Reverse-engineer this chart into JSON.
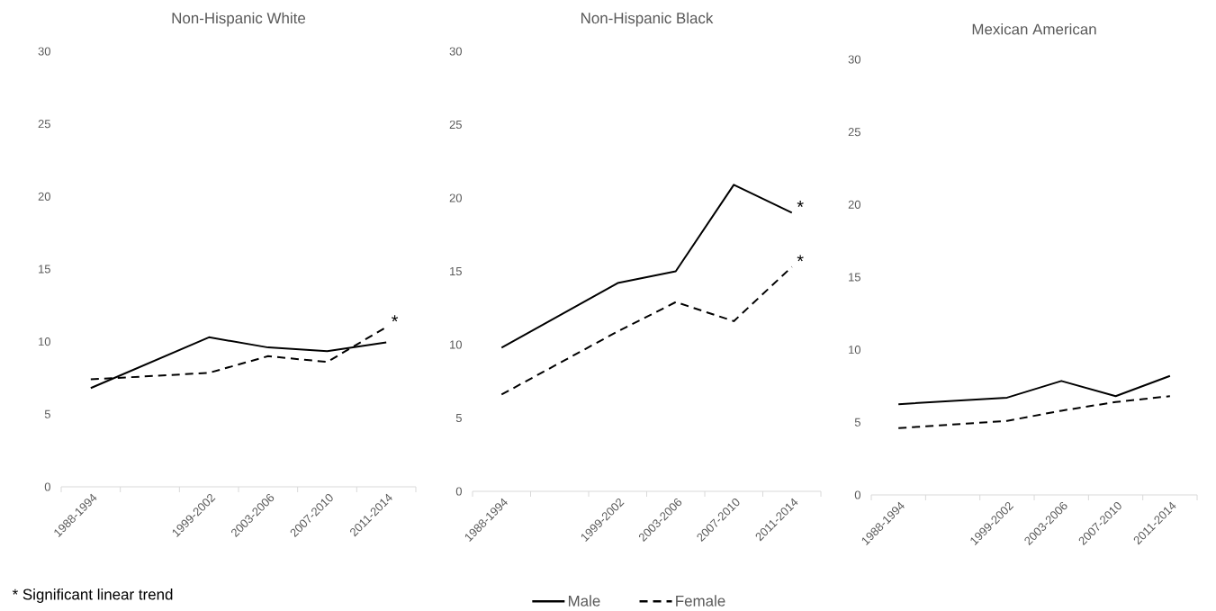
{
  "chart_data": [
    {
      "type": "line",
      "title": "Non-Hispanic White",
      "categories": [
        "1988-1994",
        null,
        "1999-2002",
        "2003-2006",
        "2007-2010",
        "2011-2014"
      ],
      "ylim": [
        0,
        30
      ],
      "yticks": [
        0,
        5,
        10,
        15,
        20,
        25,
        30
      ],
      "grid": false,
      "legend": false,
      "series": [
        {
          "color": "#000000",
          "line_style": "solid",
          "values": [
            6.8,
            null,
            10.3,
            9.6,
            9.35,
            9.95
          ]
        },
        {
          "color": "#000000",
          "line_style": "dashed",
          "values": [
            7.4,
            null,
            7.85,
            9.0,
            8.6,
            11.0
          ]
        }
      ],
      "annotations": [
        {
          "text": "*",
          "x": "2011-2014",
          "y": 11.0
        },
        "* Significant linear trend"
      ]
    },
    {
      "type": "line",
      "title": "Non-Hispanic Black",
      "categories": [
        "1988-1994",
        null,
        "1999-2002",
        "2003-2006",
        "2007-2010",
        "2011-2014"
      ],
      "ylim": [
        0,
        30
      ],
      "yticks": [
        0,
        5,
        10,
        15,
        20,
        25,
        30
      ],
      "grid": false,
      "legend": "bottom",
      "series": [
        {
          "name": "Male",
          "color": "#000000",
          "line_style": "solid",
          "values": [
            9.8,
            null,
            14.2,
            15.0,
            20.9,
            19.0
          ]
        },
        {
          "name": "Female",
          "color": "#000000",
          "line_style": "dashed",
          "values": [
            6.6,
            null,
            10.9,
            12.9,
            11.6,
            15.3
          ]
        }
      ],
      "annotations": [
        {
          "text": "*",
          "x": "2011-2014",
          "y": 19.0
        },
        {
          "text": "*",
          "x": "2011-2014",
          "y": 15.3
        }
      ]
    },
    {
      "type": "line",
      "title": "Mexican American",
      "categories": [
        "1988-1994",
        null,
        "1999-2002",
        "2003-2006",
        "2007-2010",
        "2011-2014"
      ],
      "ylim": [
        0,
        30
      ],
      "yticks": [
        0,
        5,
        10,
        15,
        20,
        25,
        30
      ],
      "grid": false,
      "legend": false,
      "series": [
        {
          "color": "#000000",
          "line_style": "solid",
          "values": [
            6.25,
            null,
            6.7,
            7.85,
            6.8,
            8.2
          ]
        },
        {
          "color": "#000000",
          "line_style": "dashed",
          "values": [
            4.6,
            null,
            5.1,
            5.8,
            6.4,
            6.8
          ]
        }
      ]
    }
  ]
}
